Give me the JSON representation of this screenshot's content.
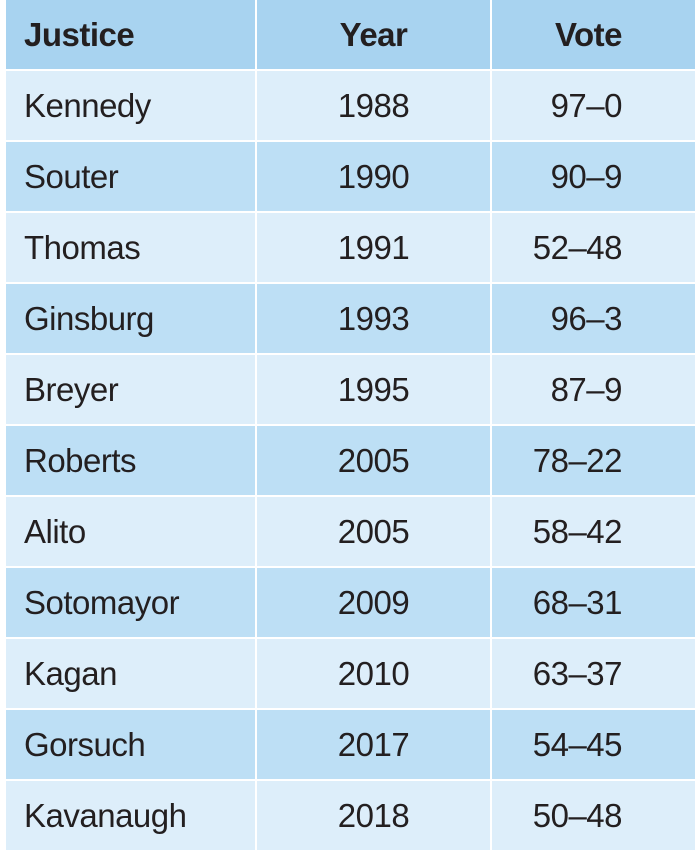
{
  "table": {
    "header": [
      "Justice",
      "Year",
      "Vote"
    ],
    "rows": [
      [
        "Kennedy",
        "1988",
        "97–0"
      ],
      [
        "Souter",
        "1990",
        "90–9"
      ],
      [
        "Thomas",
        "1991",
        "52–48"
      ],
      [
        "Ginsburg",
        "1993",
        "96–3"
      ],
      [
        "Breyer",
        "1995",
        "87–9"
      ],
      [
        "Roberts",
        "2005",
        "78–22"
      ],
      [
        "Alito",
        "2005",
        "58–42"
      ],
      [
        "Sotomayor",
        "2009",
        "68–31"
      ],
      [
        "Kagan",
        "2010",
        "63–37"
      ],
      [
        "Gorsuch",
        "2017",
        "54–45"
      ],
      [
        "Kavanaugh",
        "2018",
        "50–48"
      ]
    ]
  }
}
